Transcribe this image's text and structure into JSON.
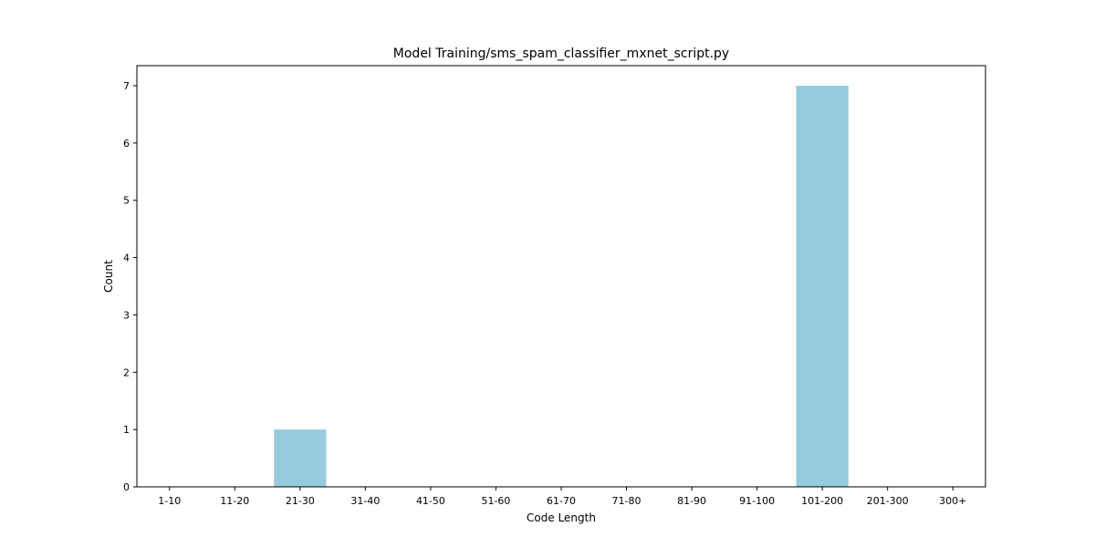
{
  "chart_data": {
    "type": "bar",
    "title": "Model Training/sms_spam_classifier_mxnet_script.py",
    "xlabel": "Code Length",
    "ylabel": "Count",
    "categories": [
      "1-10",
      "11-20",
      "21-30",
      "31-40",
      "41-50",
      "51-60",
      "61-70",
      "71-80",
      "81-90",
      "91-100",
      "101-200",
      "201-300",
      "300+"
    ],
    "values": [
      0,
      0,
      1,
      0,
      0,
      0,
      0,
      0,
      0,
      0,
      7,
      0,
      0
    ],
    "ylim": [
      0,
      7.35
    ],
    "yticks": [
      0,
      1,
      2,
      3,
      4,
      5,
      6,
      7
    ],
    "bar_color": "#96cade",
    "grid": false,
    "legend": "none"
  }
}
